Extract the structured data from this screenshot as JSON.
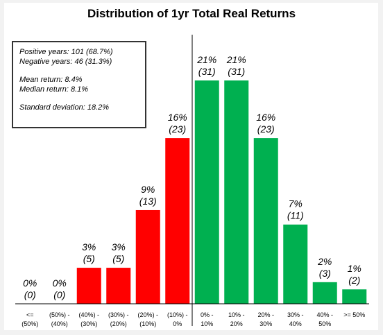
{
  "chart_data": {
    "type": "bar",
    "title": "Distribution of 1yr Total Real Returns",
    "categories": [
      [
        "<=",
        "(50%)"
      ],
      [
        "(50%) -",
        "(40%)"
      ],
      [
        "(40%) -",
        "(30%)"
      ],
      [
        "(30%) -",
        "(20%)"
      ],
      [
        "(20%) -",
        "(10%)"
      ],
      [
        "(10%) -",
        "0%"
      ],
      [
        "0% -",
        "10%"
      ],
      [
        "10% -",
        "20%"
      ],
      [
        "20% -",
        "30%"
      ],
      [
        "30% -",
        "40%"
      ],
      [
        "40% -",
        "50%"
      ],
      [
        ">= 50%",
        ""
      ]
    ],
    "values": [
      0,
      0,
      5,
      5,
      13,
      23,
      31,
      31,
      23,
      11,
      3,
      2
    ],
    "percent_labels": [
      "0%",
      "0%",
      "3%",
      "3%",
      "9%",
      "16%",
      "21%",
      "21%",
      "16%",
      "7%",
      "2%",
      "1%"
    ],
    "count_labels": [
      "(0)",
      "(0)",
      "(5)",
      "(5)",
      "(13)",
      "(23)",
      "(31)",
      "(31)",
      "(23)",
      "(11)",
      "(3)",
      "(2)"
    ],
    "ylim": [
      0,
      31
    ],
    "divider_after_index": 5,
    "colors": {
      "negative": "#ff0000",
      "positive": "#00b050"
    },
    "stats_box": {
      "lines": [
        "Positive years: 101 (68.7%)",
        "Negative years: 46 (31.3%)",
        "",
        "Mean return: 8.4%",
        "Median return: 8.1%",
        "",
        "Standard deviation: 18.2%"
      ]
    }
  }
}
